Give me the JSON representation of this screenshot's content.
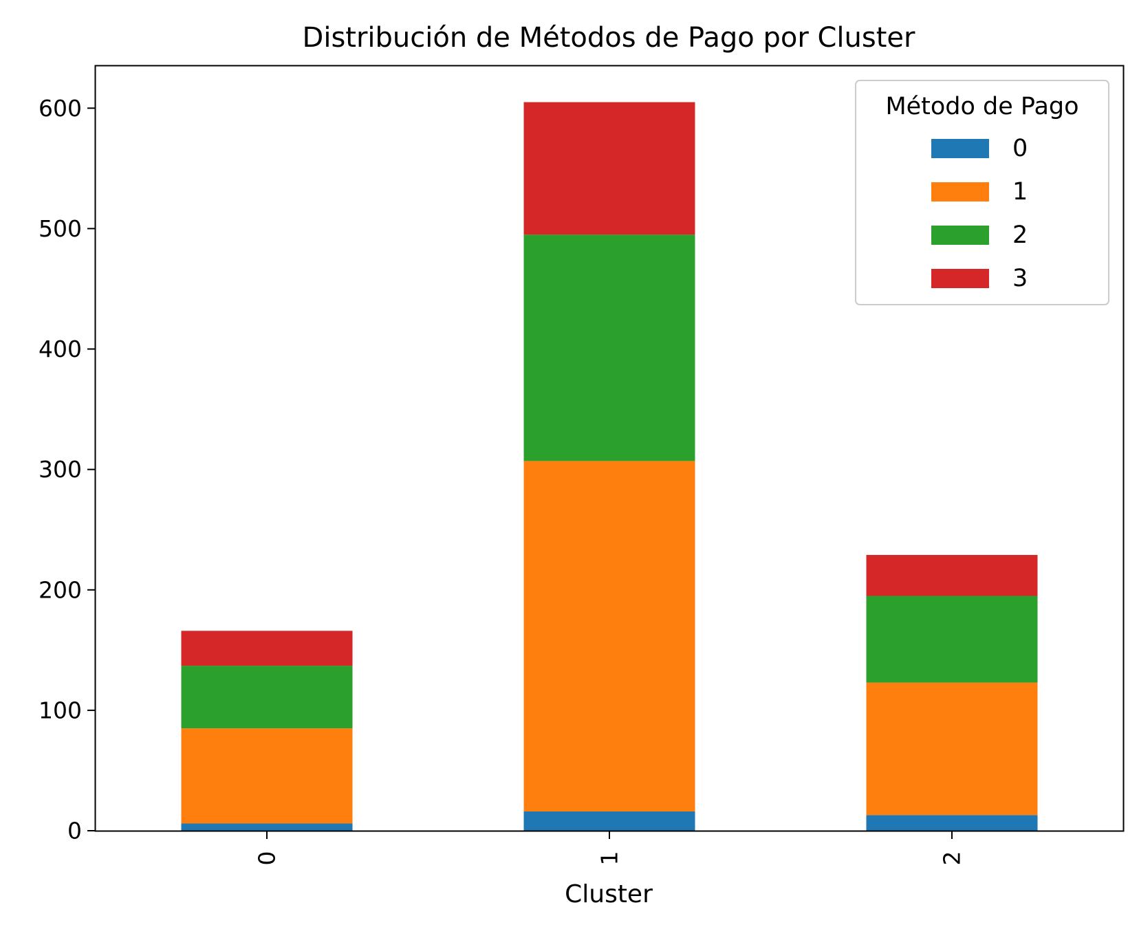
{
  "chart_data": {
    "type": "bar",
    "stacked": true,
    "title": "Distribución de Métodos de Pago por Cluster",
    "xlabel": "Cluster",
    "ylabel": "",
    "categories": [
      "0",
      "1",
      "2"
    ],
    "yticks": [
      "0",
      "100",
      "200",
      "300",
      "400",
      "500",
      "600"
    ],
    "ylim": [
      0,
      635
    ],
    "grid": false,
    "legend": {
      "title": "Método de Pago",
      "placement": "top-right"
    },
    "series": [
      {
        "name": "0",
        "color": "#1f77b4",
        "values": [
          6,
          16,
          13
        ]
      },
      {
        "name": "1",
        "color": "#ff7f0e",
        "values": [
          79,
          291,
          110
        ]
      },
      {
        "name": "2",
        "color": "#2ca02c",
        "values": [
          52,
          188,
          72
        ]
      },
      {
        "name": "3",
        "color": "#d62728",
        "values": [
          29,
          110,
          34
        ]
      }
    ]
  }
}
